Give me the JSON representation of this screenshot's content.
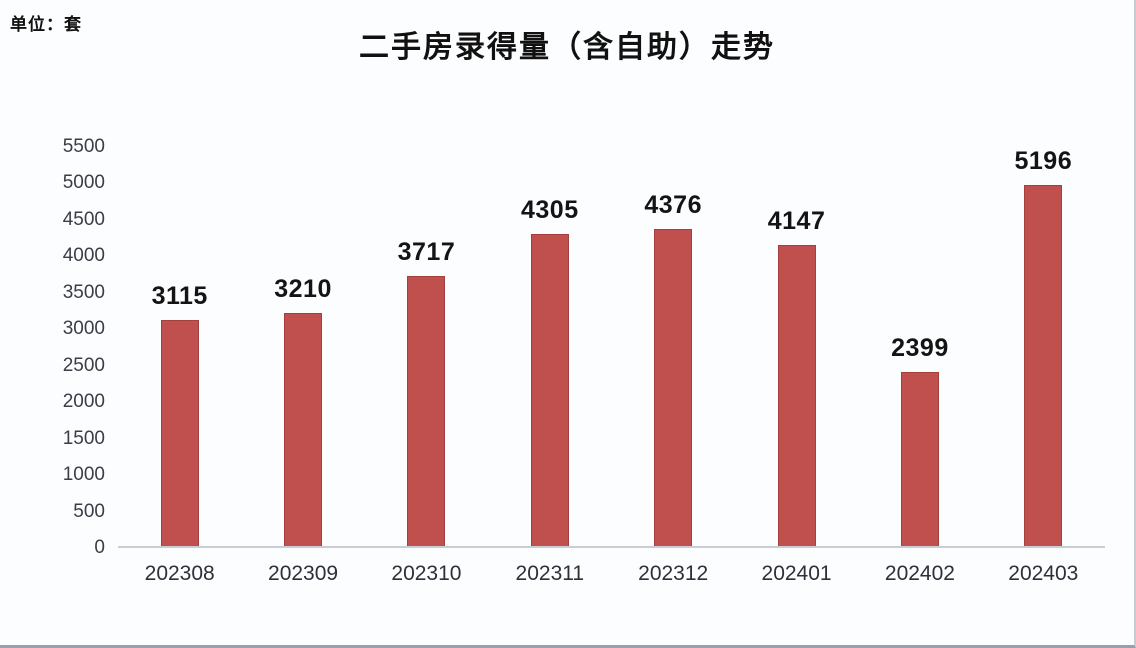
{
  "unit_label": "单位：套",
  "chart_data": {
    "type": "bar",
    "title": "二手房录得量（含自助）走势",
    "categories": [
      "202308",
      "202309",
      "202310",
      "202311",
      "202312",
      "202401",
      "202402",
      "202403"
    ],
    "values": [
      3115,
      3210,
      3717,
      4305,
      4376,
      4147,
      2399,
      5196
    ],
    "xlabel": "",
    "ylabel": "单位：套",
    "ylim": [
      0,
      5500
    ],
    "yticks": [
      0,
      500,
      1000,
      1500,
      2000,
      2500,
      3000,
      3500,
      4000,
      4500,
      5000,
      5500
    ],
    "grid": false,
    "legend_position": "none",
    "value_labels_shown": true,
    "bar_color": "#C0504D",
    "axis_line_color": "#C9CDD4",
    "title_color": "#111111",
    "tick_label_color": "#2F2F3A"
  }
}
